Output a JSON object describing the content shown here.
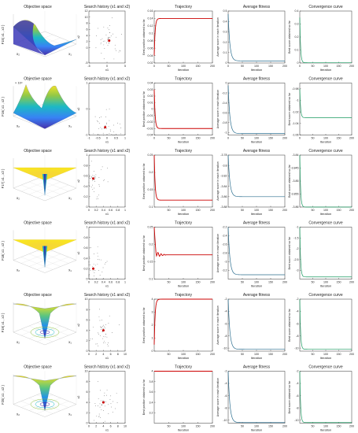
{
  "titles": {
    "objective_space": "Objective space",
    "search_history": "Search history (x1 and x2)",
    "trajectory": "Trajectory",
    "average_fitness": "Average fitness",
    "convergence": "Convergence curve"
  },
  "labels": {
    "x1": "x1",
    "x2": "x2",
    "iteration": "Iteration",
    "traj_ylabel": "Best position obtained so far",
    "avg_ylabel": "Average score in each iteration",
    "conv_ylabel": "Best score obtained so far",
    "surface_x": "x₁",
    "surface_y": "x₂"
  },
  "chart_data": [
    {
      "row": 1,
      "function": "F15( x1 , x2 )",
      "exponent": "",
      "surface": {
        "type": "multimodal_peaks",
        "colormap": "parula"
      },
      "search": {
        "xlim": [
          -5,
          5
        ],
        "ylim": [
          -5,
          12
        ],
        "xticks": [
          -5,
          0,
          5
        ],
        "yticks": [
          -5,
          0,
          2,
          4,
          6,
          8,
          10,
          12
        ],
        "best": [
          0.6,
          2.3
        ]
      },
      "trajectory": {
        "ylim": [
          0.02,
          0.16
        ],
        "yticks": [
          0.02,
          0.04,
          0.06,
          0.08,
          0.1,
          0.12,
          0.14,
          0.16
        ],
        "start": 0.04,
        "final": 0.14,
        "color": "#cc0000"
      },
      "average": {
        "ylim": [
          0,
          0.5
        ],
        "yticks": [
          0,
          0.1,
          0.2,
          0.3,
          0.4,
          0.5
        ],
        "start": 0.47,
        "final": 0.02,
        "color": "#2b6e8f"
      },
      "convergence": {
        "ylim": [
          0,
          0.4
        ],
        "yticks": [
          0,
          0.1,
          0.2,
          0.3,
          0.4
        ],
        "start": 0.35,
        "final": 0.002,
        "color": "#1a9a60"
      },
      "xlim": [
        0,
        200
      ],
      "xticks": [
        0,
        50,
        100,
        150,
        200
      ]
    },
    {
      "row": 2,
      "function": "F16( x1 , x2 )",
      "exponent": "× 10⁴",
      "surface": {
        "type": "multimodal_peaks",
        "colormap": "parula"
      },
      "search": {
        "xlim": [
          -1,
          1
        ],
        "ylim": [
          -1,
          1
        ],
        "xticks": [
          -1,
          -0.5,
          0,
          0.5,
          1
        ],
        "yticks": [
          -1,
          0,
          1
        ],
        "best": [
          -0.1,
          -0.7
        ]
      },
      "trajectory": {
        "ylim": [
          -0.04,
          0.04
        ],
        "yticks": [
          -0.04,
          -0.03,
          -0.02,
          -0.01,
          0,
          0.01,
          0.02,
          0.03,
          0.04
        ],
        "start": 0.03,
        "final": -0.03,
        "color": "#cc0000"
      },
      "average": {
        "ylim": [
          -1.05,
          0
        ],
        "yticks": [
          -1,
          -0.8,
          -0.6,
          -0.4,
          -0.2,
          0
        ],
        "start": -0.05,
        "final": -1.02,
        "color": "#2b6e8f"
      },
      "convergence": {
        "ylim": [
          -1.06,
          -0.97
        ],
        "yticks": [
          -1.06,
          -1.04,
          -1.02,
          -1,
          -0.98
        ],
        "start": -0.98,
        "final": -1.03,
        "color": "#1a9a60"
      },
      "xlim": [
        0,
        200
      ],
      "xticks": [
        0,
        50,
        100,
        150,
        200
      ]
    },
    {
      "row": 3,
      "function": "F17( x1 , x2 )",
      "exponent": "",
      "surface": {
        "type": "spike",
        "colormap": "parula"
      },
      "search": {
        "xlim": [
          0,
          1
        ],
        "ylim": [
          0,
          1
        ],
        "xticks": [
          0,
          0.2,
          0.4,
          0.6,
          0.8,
          1
        ],
        "yticks": [
          0,
          0.2,
          0.4,
          0.6,
          0.8,
          1
        ],
        "best": [
          0.12,
          0.55
        ]
      },
      "trajectory": {
        "ylim": [
          0.1,
          0.25
        ],
        "yticks": [
          0.1,
          0.15,
          0.2,
          0.25
        ],
        "start": 0.25,
        "final": 0.12,
        "color": "#cc0000"
      },
      "average": {
        "ylim": [
          -3.88,
          -3.78
        ],
        "yticks": [
          -3.88,
          -3.86,
          -3.84,
          -3.82,
          -3.8,
          -3.78
        ],
        "start": -3.78,
        "final": -3.86,
        "color": "#2b6e8f"
      },
      "convergence": {
        "ylim": [
          -3.86,
          -3.84
        ],
        "yticks": [
          -3.86,
          -3.855,
          -3.85,
          -3.845,
          -3.84
        ],
        "start": -3.84,
        "final": -3.86,
        "color": "#1a9a60"
      },
      "xlim": [
        0,
        200
      ],
      "xticks": [
        50,
        100,
        150,
        200
      ]
    },
    {
      "row": 4,
      "function": "F18( x1 , x2 )",
      "exponent": "",
      "surface": {
        "type": "spike",
        "colormap": "parula"
      },
      "search": {
        "xlim": [
          0,
          1
        ],
        "ylim": [
          0,
          1
        ],
        "xticks": [
          0,
          0.2,
          0.4,
          0.6,
          0.8,
          1
        ],
        "yticks": [
          0,
          0.2,
          0.4,
          0.6,
          0.8,
          1
        ],
        "best": [
          0.12,
          0.2
        ]
      },
      "trajectory": {
        "ylim": [
          0.1,
          0.25
        ],
        "yticks": [
          0.1,
          0.15,
          0.2,
          0.25
        ],
        "start": 0.25,
        "final": 0.17,
        "color": "#cc0000"
      },
      "average": {
        "ylim": [
          -3.4,
          -2.2
        ],
        "yticks": [
          -3.2,
          -3,
          -2.8,
          -2.6,
          -2.4,
          -2.2
        ],
        "start": -2.2,
        "final": -3.3,
        "color": "#2b6e8f"
      },
      "convergence": {
        "ylim": [
          -3.4,
          -1
        ],
        "yticks": [
          -3,
          -2.5,
          -2,
          -1.5,
          -1
        ],
        "start": -1.0,
        "final": -3.3,
        "color": "#1a9a60"
      },
      "xlim": [
        0,
        200
      ],
      "xticks": [
        50,
        100,
        150,
        200
      ]
    },
    {
      "row": 5,
      "function": "F19( x1 , x2 )",
      "exponent": "",
      "surface": {
        "type": "well",
        "colormap": "parula"
      },
      "search": {
        "xlim": [
          0,
          10
        ],
        "ylim": [
          0,
          10
        ],
        "xticks": [
          0,
          2,
          4,
          6,
          8,
          10
        ],
        "yticks": [
          0,
          2,
          4,
          6,
          8,
          10
        ],
        "best": [
          4,
          4
        ]
      },
      "trajectory": {
        "ylim": [
          0,
          4
        ],
        "yticks": [
          0,
          1,
          2,
          3,
          4
        ],
        "start": 0.5,
        "final": 4.0,
        "color": "#cc0000"
      },
      "average": {
        "ylim": [
          -10.5,
          -2
        ],
        "yticks": [
          -10,
          -8,
          -6,
          -4,
          -2
        ],
        "start": -2.0,
        "final": -10.2,
        "color": "#2b6e8f"
      },
      "convergence": {
        "ylim": [
          -10.5,
          -2
        ],
        "yticks": [
          -10,
          -8,
          -6,
          -4,
          -2
        ],
        "start": -2.0,
        "final": -10.2,
        "color": "#1a9a60"
      },
      "xlim": [
        0,
        200
      ],
      "xticks": [
        50,
        100,
        150,
        200
      ]
    },
    {
      "row": 6,
      "function": "F20( x1 , x2 )",
      "exponent": "",
      "surface": {
        "type": "well",
        "colormap": "parula"
      },
      "search": {
        "xlim": [
          0,
          10
        ],
        "ylim": [
          0,
          10
        ],
        "xticks": [
          0,
          2,
          4,
          6,
          8,
          10
        ],
        "yticks": [
          0,
          2,
          4,
          6,
          8,
          10
        ],
        "best": [
          4,
          4
        ]
      },
      "trajectory": {
        "ylim": [
          3,
          4
        ],
        "yticks": [
          3.2,
          3.4,
          3.6,
          3.8,
          4
        ],
        "start": 4.0,
        "final": 4.0,
        "color": "#cc0000"
      },
      "average": {
        "ylim": [
          -10.5,
          -2
        ],
        "yticks": [
          -10,
          -8,
          -6,
          -4,
          -2
        ],
        "start": -2.0,
        "final": -10.4,
        "color": "#2b6e8f"
      },
      "convergence": {
        "ylim": [
          -10.5,
          -2
        ],
        "yticks": [
          -10,
          -8,
          -6,
          -4,
          -2
        ],
        "start": -2.0,
        "final": -10.4,
        "color": "#1a9a60"
      },
      "xlim": [
        0,
        200
      ],
      "xticks": [
        50,
        100,
        150,
        200
      ]
    }
  ]
}
